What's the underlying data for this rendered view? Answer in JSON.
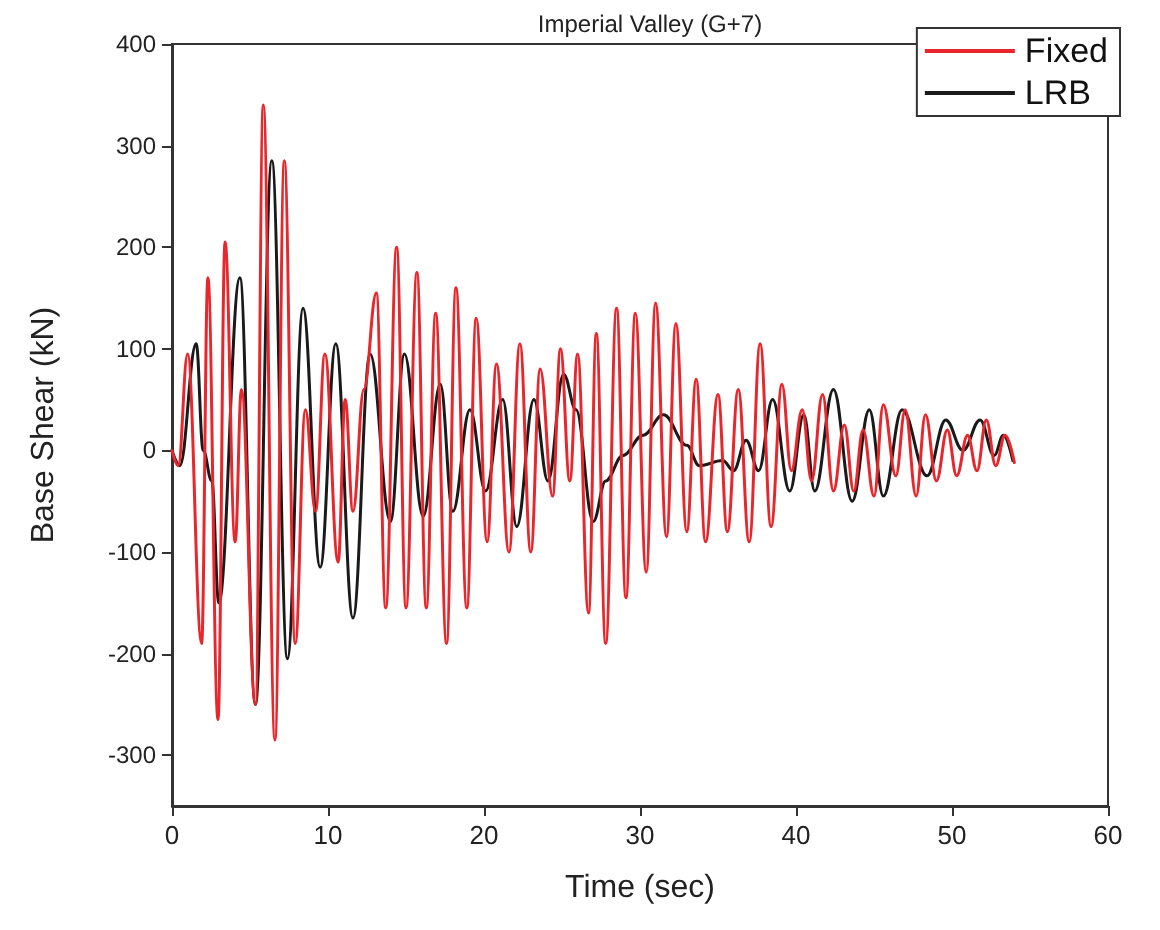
{
  "chart_data": {
    "type": "line",
    "title": "Imperial Valley (G+7)",
    "xlabel": "Time (sec)",
    "ylabel": "Base Shear (kN)",
    "xlim": [
      0,
      60
    ],
    "xticks": [
      0,
      10,
      20,
      30,
      40,
      50,
      60
    ],
    "ylim": [
      -350,
      400
    ],
    "yticks": [
      -300,
      -200,
      -100,
      0,
      100,
      200,
      300,
      400
    ],
    "grid": false,
    "legend": "top right",
    "marker": "none",
    "line_style": "solid",
    "series": [
      {
        "name": "Fixed",
        "color": "#e8262c",
        "x": [
          0,
          0.4,
          1.0,
          1.9,
          2.3,
          2.95,
          3.4,
          4.05,
          4.45,
          5.35,
          5.85,
          6.6,
          7.2,
          7.9,
          8.55,
          9.2,
          9.8,
          10.65,
          11.1,
          11.6,
          12.3,
          13.1,
          13.7,
          14.4,
          15.0,
          15.7,
          16.3,
          16.9,
          17.6,
          18.2,
          18.9,
          19.5,
          20.2,
          20.8,
          21.6,
          22.3,
          23.0,
          23.6,
          24.4,
          24.9,
          25.5,
          26.0,
          26.7,
          27.2,
          27.8,
          28.5,
          29.1,
          29.7,
          30.4,
          31.0,
          31.7,
          32.3,
          33.0,
          33.6,
          34.2,
          35.0,
          35.6,
          36.3,
          37.0,
          37.7,
          38.4,
          39.1,
          39.7,
          40.4,
          41.0,
          41.7,
          42.4,
          43.1,
          43.7,
          44.3,
          45.0,
          45.6,
          46.4,
          47.0,
          47.7,
          48.3,
          49.0,
          49.7,
          50.3,
          51.0,
          51.6,
          52.2,
          52.8,
          53.4,
          54.0
        ],
        "values": [
          0,
          -15,
          95,
          -190,
          170,
          -265,
          205,
          -90,
          60,
          -250,
          340,
          -285,
          285,
          -190,
          40,
          -60,
          95,
          -110,
          50,
          -60,
          60,
          155,
          -155,
          200,
          -155,
          175,
          -155,
          135,
          -190,
          160,
          -155,
          130,
          -90,
          85,
          -100,
          105,
          -100,
          80,
          -45,
          100,
          -30,
          95,
          -160,
          115,
          -190,
          140,
          -145,
          135,
          -120,
          145,
          -85,
          125,
          -80,
          70,
          -90,
          55,
          -80,
          60,
          -90,
          105,
          -75,
          65,
          -20,
          40,
          -30,
          55,
          -40,
          25,
          -40,
          20,
          -45,
          45,
          -25,
          40,
          -45,
          35,
          -30,
          20,
          -25,
          15,
          -20,
          30,
          -15,
          15,
          -12
        ]
      },
      {
        "name": "LRB",
        "color": "#1a1a1a",
        "x": [
          0,
          0.5,
          1.55,
          2.0,
          2.55,
          3.0,
          4.35,
          5.35,
          6.4,
          7.4,
          8.4,
          9.5,
          10.5,
          11.6,
          12.7,
          14.0,
          14.9,
          16.1,
          17.2,
          18.0,
          19.1,
          20.1,
          21.2,
          22.1,
          23.2,
          24.1,
          25.1,
          25.9,
          27.0,
          27.8,
          28.9,
          30.2,
          31.5,
          33.0,
          33.8,
          35.3,
          36.0,
          36.8,
          37.6,
          38.5,
          39.6,
          40.5,
          41.2,
          42.4,
          43.6,
          44.7,
          45.6,
          46.8,
          48.4,
          49.6,
          50.7,
          51.8,
          52.7,
          53.3,
          53.9
        ],
        "values": [
          0,
          -15,
          105,
          0,
          -30,
          -150,
          170,
          -250,
          285,
          -205,
          140,
          -115,
          105,
          -165,
          95,
          -70,
          95,
          -65,
          65,
          -60,
          40,
          -40,
          50,
          -75,
          50,
          -30,
          75,
          40,
          -70,
          -30,
          -5,
          15,
          35,
          5,
          -15,
          -10,
          -20,
          10,
          -20,
          50,
          -40,
          35,
          -40,
          60,
          -50,
          40,
          -45,
          40,
          -25,
          30,
          0,
          30,
          -5,
          15,
          -10
        ]
      }
    ]
  }
}
